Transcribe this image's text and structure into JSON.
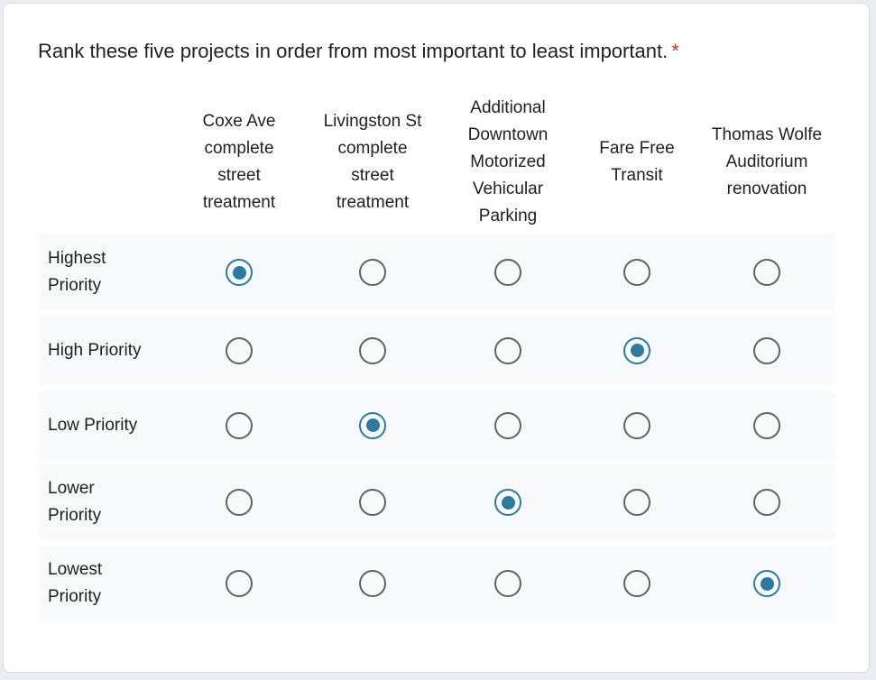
{
  "question": {
    "text": "Rank these five projects in order from most important to least important.",
    "required_marker": "*"
  },
  "columns": [
    {
      "label_lines": [
        "Coxe Ave",
        "complete",
        "street",
        "treatment"
      ]
    },
    {
      "label_lines": [
        "Livingston St",
        "complete",
        "street",
        "treatment"
      ]
    },
    {
      "label_lines": [
        "Additional",
        "Downtown",
        "Motorized",
        "Vehicular",
        "Parking"
      ]
    },
    {
      "label_lines": [
        "Fare Free",
        "Transit"
      ]
    },
    {
      "label_lines": [
        "Thomas Wolfe",
        "Auditorium",
        "renovation"
      ]
    }
  ],
  "rows": [
    {
      "label_lines": [
        "Highest",
        "Priority"
      ],
      "selected_column": 0
    },
    {
      "label_lines": [
        "High Priority"
      ],
      "selected_column": 3
    },
    {
      "label_lines": [
        "Low Priority"
      ],
      "selected_column": 1
    },
    {
      "label_lines": [
        "Lower",
        "Priority"
      ],
      "selected_column": 2
    },
    {
      "label_lines": [
        "Lowest",
        "Priority"
      ],
      "selected_column": 4
    }
  ],
  "colors": {
    "accent": "#2d7a9f",
    "required": "#d93025",
    "row_background": "#f8f9fa"
  }
}
